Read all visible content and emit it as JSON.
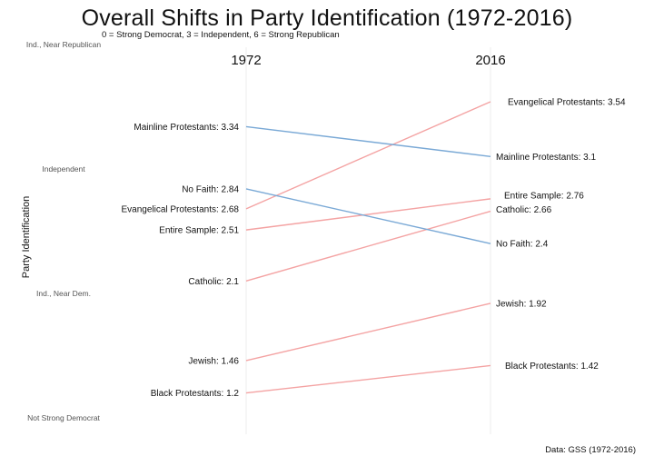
{
  "chart_data": {
    "type": "line",
    "title": "Overall Shifts in Party Identification (1972-2016)",
    "subtitle": "0 = Strong Democrat, 3 = Independent, 6 = Strong Republican",
    "ylabel": "Party Identification",
    "source": "Data: GSS (1972-2016)",
    "x": [
      "1972",
      "2016"
    ],
    "ylim": [
      1,
      4
    ],
    "yticks": [
      {
        "value": 1,
        "label": "Not Strong Democrat"
      },
      {
        "value": 2,
        "label": "Ind., Near Dem."
      },
      {
        "value": 3,
        "label": "Independent"
      },
      {
        "value": 4,
        "label": "Ind., Near Republican"
      }
    ],
    "colors": {
      "right_shift": "#f4a3a3",
      "left_shift": "#7aa9d6"
    },
    "series": [
      {
        "name": "Evangelical Protestants",
        "values": [
          2.68,
          3.54
        ],
        "color": "#f4a3a3"
      },
      {
        "name": "Mainline Protestants",
        "values": [
          3.34,
          3.1
        ],
        "color": "#7aa9d6"
      },
      {
        "name": "Entire Sample",
        "values": [
          2.51,
          2.76
        ],
        "color": "#f4a3a3"
      },
      {
        "name": "Catholic",
        "values": [
          2.1,
          2.66
        ],
        "color": "#f4a3a3"
      },
      {
        "name": "No Faith",
        "values": [
          2.84,
          2.4
        ],
        "color": "#7aa9d6"
      },
      {
        "name": "Jewish",
        "values": [
          1.46,
          1.92
        ],
        "color": "#f4a3a3"
      },
      {
        "name": "Black Protestants",
        "values": [
          1.2,
          1.42
        ],
        "color": "#f4a3a3"
      }
    ]
  }
}
